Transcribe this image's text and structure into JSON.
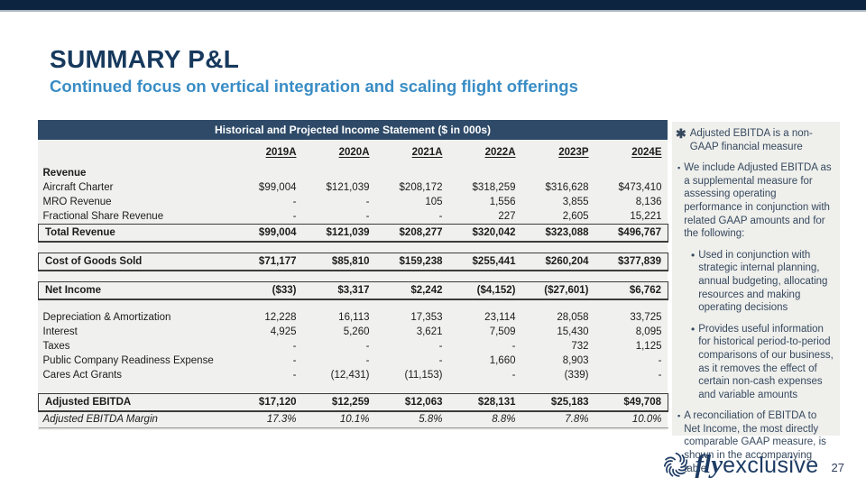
{
  "colors": {
    "top_bar": "#0d2440",
    "title_navy": "#17395d",
    "subtitle_blue": "#3a8dc5",
    "table_header_bg": "#2e4a68",
    "panel_bg": "#f0f0ee",
    "sidebar_text": "#36495e",
    "logo_navy": "#1e3c64"
  },
  "header": {
    "title": "SUMMARY P&L",
    "subtitle": "Continued focus on vertical integration and scaling flight offerings"
  },
  "table": {
    "title": "Historical and Projected Income Statement ($ in 000s)",
    "columns": [
      "2019A",
      "2020A",
      "2021A",
      "2022A",
      "2023P",
      "2024E"
    ],
    "rows": [
      {
        "label": "Revenue",
        "style": "section",
        "values": [
          "",
          "",
          "",
          "",
          "",
          ""
        ]
      },
      {
        "label": "Aircraft Charter",
        "style": "normal",
        "values": [
          "$99,004",
          "$121,039",
          "$208,172",
          "$318,259",
          "$316,628",
          "$473,410"
        ]
      },
      {
        "label": "MRO Revenue",
        "style": "normal",
        "values": [
          "-",
          "-",
          "105",
          "1,556",
          "3,855",
          "8,136"
        ]
      },
      {
        "label": "Fractional Share Revenue",
        "style": "normal",
        "values": [
          "-",
          "-",
          "-",
          "227",
          "2,605",
          "15,221"
        ]
      },
      {
        "label": "Total Revenue",
        "style": "boxed",
        "values": [
          "$99,004",
          "$121,039",
          "$208,277",
          "$320,042",
          "$323,088",
          "$496,767"
        ]
      },
      {
        "style": "spacer"
      },
      {
        "label": "Cost of Goods Sold",
        "style": "boxed",
        "values": [
          "$71,177",
          "$85,810",
          "$159,238",
          "$255,441",
          "$260,204",
          "$377,839"
        ]
      },
      {
        "style": "spacer"
      },
      {
        "label": "Net Income",
        "style": "boxed",
        "values": [
          "($33)",
          "$3,317",
          "$2,242",
          "($4,152)",
          "($27,601)",
          "$6,762"
        ]
      },
      {
        "style": "spacer"
      },
      {
        "label": "Depreciation & Amortization",
        "style": "normal",
        "values": [
          "12,228",
          "16,113",
          "17,353",
          "23,114",
          "28,058",
          "33,725"
        ]
      },
      {
        "label": "Interest",
        "style": "normal",
        "values": [
          "4,925",
          "5,260",
          "3,621",
          "7,509",
          "15,430",
          "8,095"
        ]
      },
      {
        "label": "Taxes",
        "style": "normal",
        "values": [
          "-",
          "-",
          "-",
          "-",
          "732",
          "1,125"
        ]
      },
      {
        "label": "Public Company Readiness Expense",
        "style": "normal",
        "values": [
          "-",
          "-",
          "-",
          "1,660",
          "8,903",
          "-"
        ]
      },
      {
        "label": "Cares Act Grants",
        "style": "normal",
        "values": [
          "-",
          "(12,431)",
          "(11,153)",
          "-",
          "(339)",
          "-"
        ]
      },
      {
        "style": "spacer"
      },
      {
        "label": "Adjusted EBITDA",
        "style": "boxed",
        "values": [
          "$17,120",
          "$12,259",
          "$12,063",
          "$28,131",
          "$25,183",
          "$49,708"
        ]
      },
      {
        "label": "Adjusted EBITDA Margin",
        "style": "italic",
        "values": [
          "17.3%",
          "10.1%",
          "5.8%",
          "8.8%",
          "7.8%",
          "10.0%"
        ]
      }
    ]
  },
  "sidebar": {
    "items": [
      {
        "marker": "star",
        "text": "Adjusted EBITDA is a non-GAAP financial measure"
      },
      {
        "marker": "square",
        "text": "We include Adjusted EBITDA as a supplemental measure for assessing operating performance in conjunction with related GAAP amounts and for the following:"
      },
      {
        "marker": "dot",
        "text": "Used in conjunction with strategic internal planning, annual budgeting, allocating resources and making operating decisions"
      },
      {
        "marker": "dot",
        "text": "Provides useful information for historical period-to-period comparisons of our business, as it removes the effect of certain non-cash expenses and variable amounts"
      },
      {
        "marker": "square",
        "text": "A reconciliation of EBITDA to Net Income, the most directly comparable GAAP measure, is shown in the accompanying table"
      }
    ]
  },
  "footer": {
    "logo_fly": "fly",
    "logo_exclusive": "exclusive",
    "page_number": "27"
  }
}
